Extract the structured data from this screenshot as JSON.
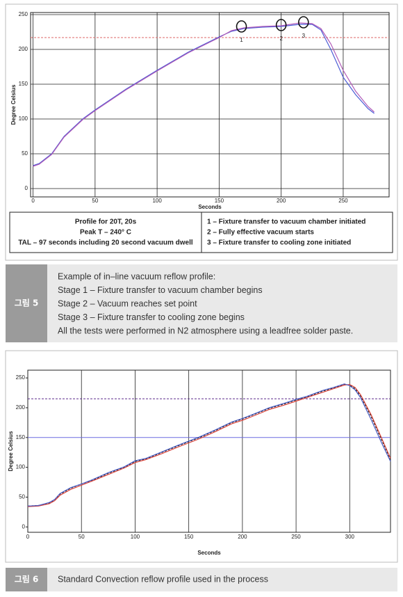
{
  "chart_data": [
    {
      "type": "line",
      "x_label": "Seconds",
      "y_label": "Degree Celsius",
      "xlim": [
        -2,
        287
      ],
      "ylim": [
        -12,
        253
      ],
      "xticks": [
        0,
        50,
        100,
        150,
        200,
        250
      ],
      "yticks": [
        0,
        50,
        100,
        150,
        200,
        250
      ],
      "grid": "both",
      "x": [
        0,
        5,
        15,
        25,
        40,
        50,
        75,
        100,
        125,
        150,
        160,
        170,
        185,
        200,
        215,
        225,
        232,
        240,
        250,
        260,
        270,
        275
      ],
      "series": [
        {
          "color": "#4b5cd6",
          "values": [
            33,
            36,
            50,
            75,
            100,
            113,
            143,
            170,
            196,
            218,
            226,
            230,
            232,
            233,
            236,
            236,
            228,
            200,
            160,
            135,
            115,
            108
          ]
        },
        {
          "color": "#b05ab8",
          "values": [
            32,
            35,
            49,
            74,
            99,
            112,
            142,
            169,
            195,
            217,
            227,
            231,
            233,
            234,
            238,
            237,
            230,
            208,
            170,
            140,
            118,
            110
          ]
        }
      ],
      "reference_lines": [
        {
          "value": 217,
          "color": "#d66",
          "dashed": true
        }
      ],
      "annotations": [
        {
          "x": 168,
          "y": 233,
          "label": "1"
        },
        {
          "x": 200,
          "y": 235,
          "label": "2"
        },
        {
          "x": 218,
          "y": 239,
          "label": "3"
        }
      ],
      "notes_left": [
        "Profile for 20T, 20s",
        "Peak T – 240° C",
        "TAL – 97 seconds including 20 second vacuum dwell"
      ],
      "notes_right": [
        "1 – Fixture transfer to vacuum chamber initiated",
        "2 – Fully effective vacuum starts",
        "3 – Fixture transfer to cooling zone initiated"
      ]
    },
    {
      "type": "line",
      "x_label": "Seconds",
      "y_label": "Degree Celsius",
      "xlim": [
        0,
        338
      ],
      "ylim": [
        -9,
        263
      ],
      "xticks": [
        0,
        50,
        100,
        150,
        200,
        250,
        300
      ],
      "yticks": [
        0,
        50,
        100,
        150,
        200,
        250
      ],
      "grid": "x",
      "x": [
        0,
        10,
        20,
        25,
        30,
        40,
        50,
        60,
        75,
        90,
        100,
        110,
        125,
        140,
        150,
        160,
        175,
        190,
        200,
        210,
        225,
        240,
        250,
        260,
        275,
        285,
        295,
        300,
        305,
        310,
        320,
        330,
        338
      ],
      "series": [
        {
          "color": "#222222",
          "dashed": true,
          "values": [
            35,
            36,
            40,
            45,
            55,
            65,
            72,
            78,
            90,
            100,
            110,
            114,
            125,
            136,
            143,
            150,
            162,
            175,
            181,
            188,
            199,
            207,
            213,
            218,
            228,
            233,
            239,
            238,
            232,
            220,
            185,
            145,
            113
          ]
        },
        {
          "color": "#d9413a",
          "values": [
            34,
            35,
            39,
            44,
            53,
            63,
            70,
            77,
            88,
            99,
            108,
            113,
            123,
            134,
            141,
            148,
            160,
            173,
            179,
            186,
            197,
            205,
            211,
            217,
            226,
            232,
            238,
            239,
            234,
            222,
            188,
            148,
            115
          ]
        },
        {
          "color": "#4b5cc4",
          "values": [
            35,
            36,
            41,
            46,
            56,
            66,
            72,
            79,
            91,
            101,
            111,
            115,
            126,
            137,
            144,
            151,
            163,
            176,
            182,
            189,
            200,
            208,
            214,
            219,
            229,
            234,
            240,
            237,
            230,
            217,
            180,
            140,
            110
          ]
        }
      ],
      "reference_lines": [
        {
          "value": 215,
          "color": "#5a2a8a",
          "dashed": true
        },
        {
          "value": 150,
          "color": "#6a6ae0",
          "dashed": false
        }
      ]
    }
  ],
  "figure5": {
    "label": "그림 5",
    "lines": [
      "Example of in–line vacuum reflow profile:",
      "Stage 1 – Fixture transfer to vacuum chamber begins",
      "Stage 2 – Vacuum reaches set point",
      "Stage 3 – Fixture transfer to cooling zone begins",
      "All the tests were performed in N2 atmosphere using a leadfree solder paste."
    ]
  },
  "figure6": {
    "label": "그림 6",
    "lines": [
      "Standard Convection reflow profile used in the process"
    ]
  }
}
